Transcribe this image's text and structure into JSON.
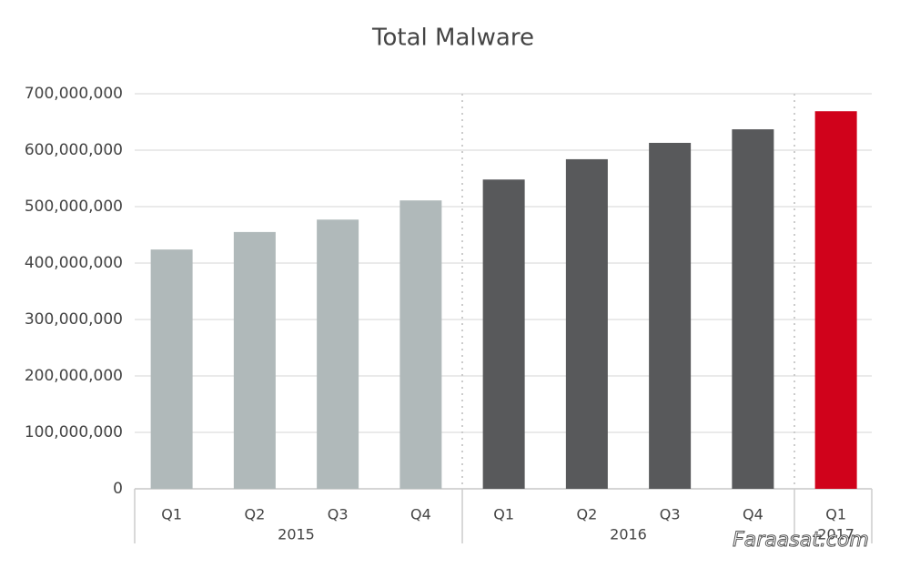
{
  "chart_data": {
    "type": "bar",
    "title": "Total Malware",
    "groups": [
      {
        "name": "2015",
        "color": "#b0b9ba",
        "categories": [
          "Q1",
          "Q2",
          "Q3",
          "Q4"
        ],
        "values": [
          424000000,
          455000000,
          477000000,
          511000000
        ]
      },
      {
        "name": "2016",
        "color": "#58595b",
        "categories": [
          "Q1",
          "Q2",
          "Q3",
          "Q4"
        ],
        "values": [
          548000000,
          584000000,
          613000000,
          637000000
        ]
      },
      {
        "name": "2017",
        "color": "#d0021b",
        "categories": [
          "Q1"
        ],
        "values": [
          669000000
        ]
      }
    ],
    "ylim": [
      0,
      700000000
    ],
    "yticks": [
      0,
      {
        "value": 100000000,
        "label": "100,000,000"
      },
      {
        "value": 200000000,
        "label": "200,000,000"
      },
      {
        "value": 300000000,
        "label": "300,000,000"
      },
      {
        "value": 400000000,
        "label": "400,000,000"
      },
      {
        "value": 500000000,
        "label": "500,000,000"
      },
      {
        "value": 600000000,
        "label": "600,000,000"
      },
      {
        "value": 700000000,
        "label": "700,000,000"
      }
    ],
    "grid": true,
    "watermark": "Faraasat.com"
  }
}
